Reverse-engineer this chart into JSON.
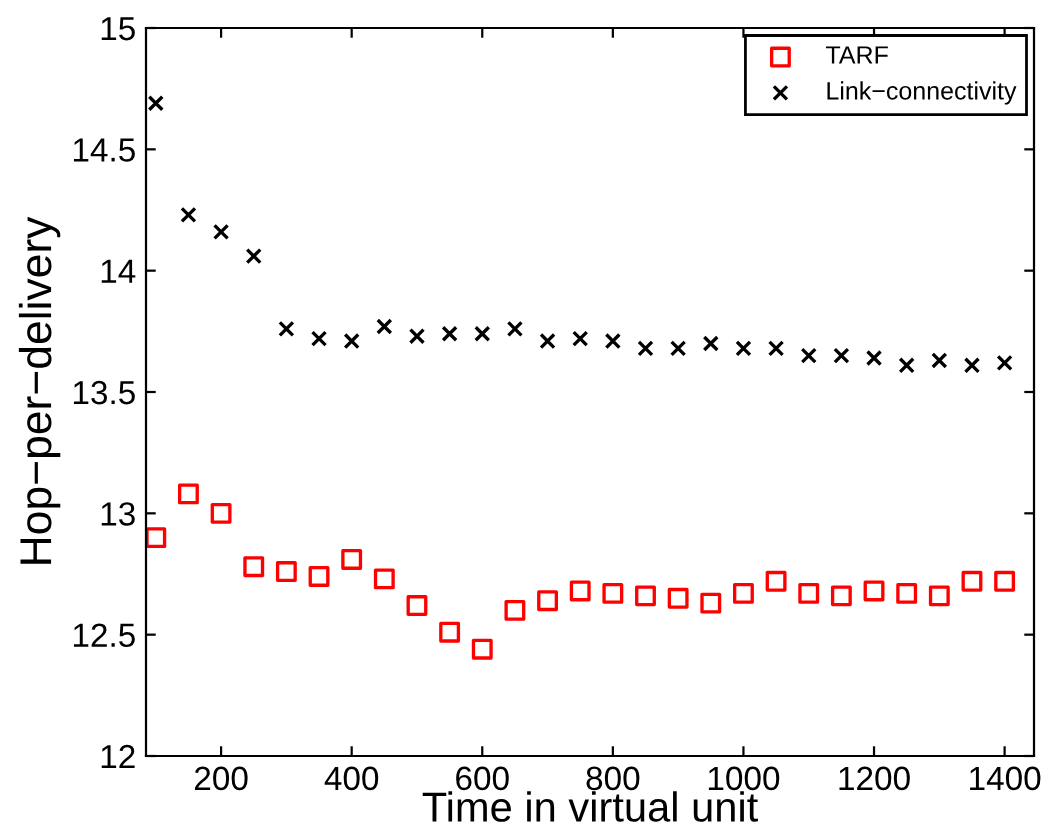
{
  "chart_data": {
    "type": "scatter",
    "xlabel": "Time in virtual unit",
    "ylabel": "Hop−per−delivery",
    "x": [
      100,
      150,
      200,
      250,
      300,
      350,
      400,
      450,
      500,
      550,
      600,
      650,
      700,
      750,
      800,
      850,
      900,
      950,
      1000,
      1050,
      1100,
      1150,
      1200,
      1250,
      1300,
      1350,
      1400
    ],
    "series": [
      {
        "name": "TARF",
        "color": "#ff0000",
        "marker": "square",
        "values": [
          12.9,
          13.08,
          13.0,
          12.78,
          12.76,
          12.74,
          12.81,
          12.73,
          12.62,
          12.51,
          12.44,
          12.6,
          12.64,
          12.68,
          12.67,
          12.66,
          12.65,
          12.63,
          12.67,
          12.72,
          12.67,
          12.66,
          12.68,
          12.67,
          12.66,
          12.72,
          12.72
        ]
      },
      {
        "name": "Link−connectivity",
        "color": "#000000",
        "marker": "cross",
        "values": [
          14.69,
          14.23,
          14.16,
          14.06,
          13.76,
          13.72,
          13.71,
          13.77,
          13.73,
          13.74,
          13.74,
          13.76,
          13.71,
          13.72,
          13.71,
          13.68,
          13.68,
          13.7,
          13.68,
          13.68,
          13.65,
          13.65,
          13.64,
          13.61,
          13.63,
          13.61,
          13.62
        ]
      }
    ],
    "xlim": [
      85,
      1445
    ],
    "ylim": [
      12,
      15
    ],
    "xticks": [
      200,
      400,
      600,
      800,
      1000,
      1200,
      1400
    ],
    "yticks": [
      12,
      12.5,
      13,
      13.5,
      14,
      14.5,
      15
    ],
    "grid": false,
    "legend": "top right"
  }
}
